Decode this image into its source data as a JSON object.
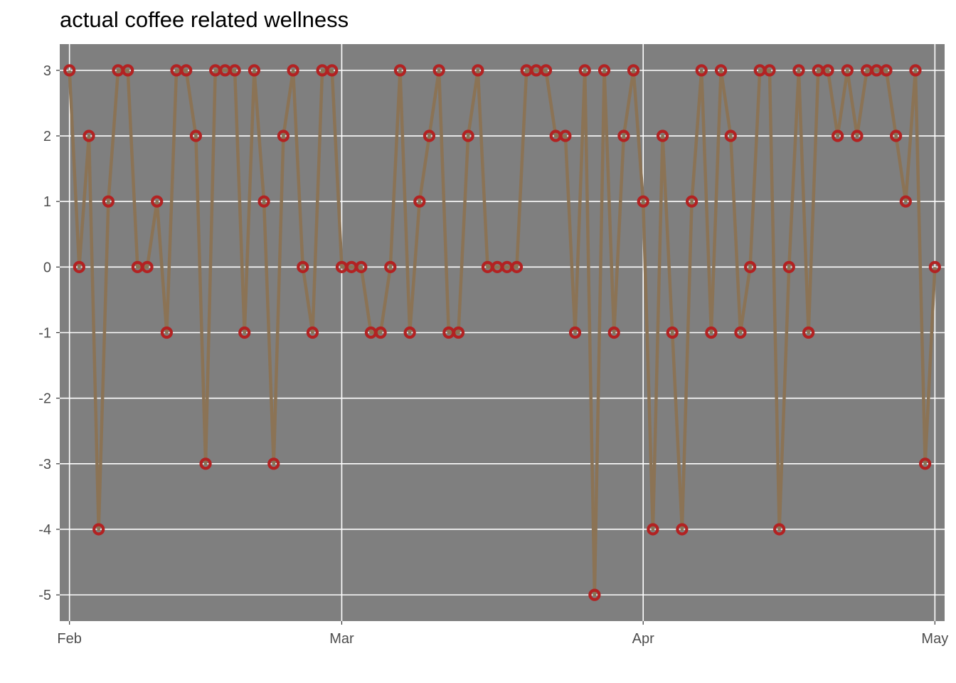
{
  "chart_data": {
    "type": "line",
    "title": "actual coffee related wellness",
    "xlabel": "",
    "ylabel": "",
    "x_axis_type": "date",
    "xlim": [
      "2021-01-31",
      "2021-05-02"
    ],
    "ylim": [
      -5.4,
      3.4
    ],
    "yticks": [
      3,
      2,
      1,
      0,
      -1,
      -2,
      -3,
      -4,
      -5
    ],
    "xticks": [
      {
        "date": "2021-02-01",
        "label": "Feb"
      },
      {
        "date": "2021-03-01",
        "label": "Mar"
      },
      {
        "date": "2021-04-01",
        "label": "Apr"
      },
      {
        "date": "2021-05-01",
        "label": "May"
      }
    ],
    "grid": true,
    "panel_background": "#7f7f7f",
    "line_color": "#8b7355",
    "point_color": "#b22222",
    "series": [
      {
        "x": [
          "2021-02-01",
          "2021-02-02",
          "2021-02-03",
          "2021-02-04",
          "2021-02-05",
          "2021-02-06",
          "2021-02-07",
          "2021-02-08",
          "2021-02-09",
          "2021-02-10",
          "2021-02-11",
          "2021-02-12",
          "2021-02-13",
          "2021-02-14",
          "2021-02-15",
          "2021-02-16",
          "2021-02-17",
          "2021-02-18",
          "2021-02-19",
          "2021-02-20",
          "2021-02-21",
          "2021-02-22",
          "2021-02-23",
          "2021-02-24",
          "2021-02-25",
          "2021-02-26",
          "2021-02-27",
          "2021-02-28",
          "2021-03-01",
          "2021-03-02",
          "2021-03-03",
          "2021-03-04",
          "2021-03-05",
          "2021-03-06",
          "2021-03-07",
          "2021-03-08",
          "2021-03-09",
          "2021-03-10",
          "2021-03-11",
          "2021-03-12",
          "2021-03-13",
          "2021-03-14",
          "2021-03-15",
          "2021-03-16",
          "2021-03-17",
          "2021-03-18",
          "2021-03-19",
          "2021-03-20",
          "2021-03-21",
          "2021-03-22",
          "2021-03-23",
          "2021-03-24",
          "2021-03-25",
          "2021-03-26",
          "2021-03-27",
          "2021-03-28",
          "2021-03-29",
          "2021-03-30",
          "2021-03-31",
          "2021-04-01",
          "2021-04-02",
          "2021-04-03",
          "2021-04-04",
          "2021-04-05",
          "2021-04-06",
          "2021-04-07",
          "2021-04-08",
          "2021-04-09",
          "2021-04-10",
          "2021-04-11",
          "2021-04-12",
          "2021-04-13",
          "2021-04-14",
          "2021-04-15",
          "2021-04-16",
          "2021-04-17",
          "2021-04-18",
          "2021-04-19",
          "2021-04-20",
          "2021-04-21",
          "2021-04-22",
          "2021-04-23",
          "2021-04-24",
          "2021-04-25",
          "2021-04-26",
          "2021-04-27",
          "2021-04-28",
          "2021-04-29",
          "2021-04-30",
          "2021-05-01"
        ],
        "values": [
          3,
          0,
          2,
          -4,
          1,
          3,
          3,
          0,
          0,
          1,
          -1,
          3,
          3,
          2,
          -3,
          3,
          3,
          3,
          -1,
          3,
          1,
          -3,
          2,
          3,
          0,
          -1,
          3,
          3,
          0,
          0,
          0,
          -1,
          -1,
          0,
          3,
          -1,
          1,
          2,
          3,
          -1,
          -1,
          2,
          3,
          0,
          0,
          0,
          0,
          3,
          3,
          3,
          2,
          2,
          -1,
          3,
          -5,
          3,
          -1,
          2,
          3,
          1,
          -4,
          2,
          -1,
          -4,
          1,
          3,
          -1,
          3,
          2,
          -1,
          0,
          3,
          3,
          -4,
          0,
          3,
          -1,
          3,
          3,
          2,
          3,
          2,
          3,
          3,
          3,
          2,
          1,
          3,
          -3,
          0
        ]
      }
    ]
  }
}
